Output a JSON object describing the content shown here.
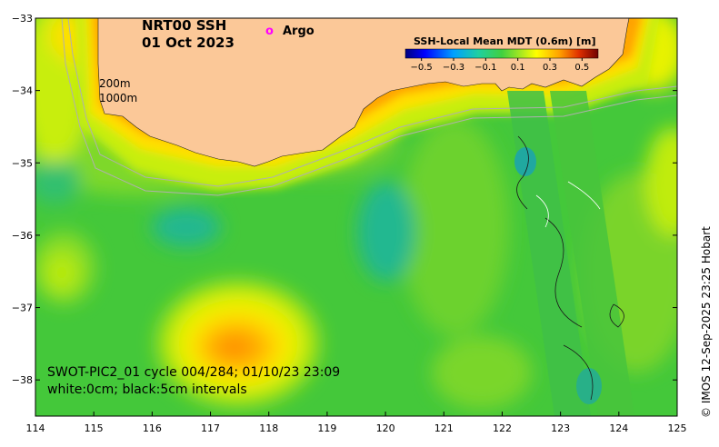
{
  "map": {
    "title_line1": "NRT00 SSH",
    "title_line2": "01 Oct 2023",
    "argo_symbol": "o",
    "argo_label": "Argo",
    "argo_color": "#ff00ff",
    "isobath_200": "200m",
    "isobath_1000": "1000m",
    "caption_line1": "SWOT-PIC2_01 cycle 004/284; 01/10/23 23:09",
    "caption_line2": "white:0cm; black:5cm intervals",
    "copyright": "© IMOS 12-Sep-2025 23:25 Hobart",
    "land_color": "#fbc898",
    "lon_ticks": [
      "114",
      "115",
      "116",
      "117",
      "118",
      "119",
      "120",
      "121",
      "122",
      "123",
      "124",
      "125"
    ],
    "lat_ticks": [
      "-33",
      "-34",
      "-35",
      "-36",
      "-37",
      "-38"
    ],
    "lon_range": [
      114,
      125
    ],
    "lat_range": [
      -38.5,
      -33
    ]
  },
  "colorbar": {
    "title": "SSH-Local Mean MDT (0.6m) [m]",
    "tick_labels": [
      "−0.5",
      "−0.3",
      "−0.1",
      "0.1",
      "0.3",
      "0.5"
    ],
    "tick_values": [
      -0.5,
      -0.3,
      -0.1,
      0.1,
      0.3,
      0.5
    ],
    "range": [
      -0.6,
      0.6
    ],
    "colors": [
      "#00007f",
      "#0000ff",
      "#0060ff",
      "#00c0ff",
      "#20e0c0",
      "#40d080",
      "#30c840",
      "#80e020",
      "#c8f000",
      "#ffff00",
      "#ffc000",
      "#ff8000",
      "#e04000",
      "#a00000",
      "#600000"
    ]
  }
}
